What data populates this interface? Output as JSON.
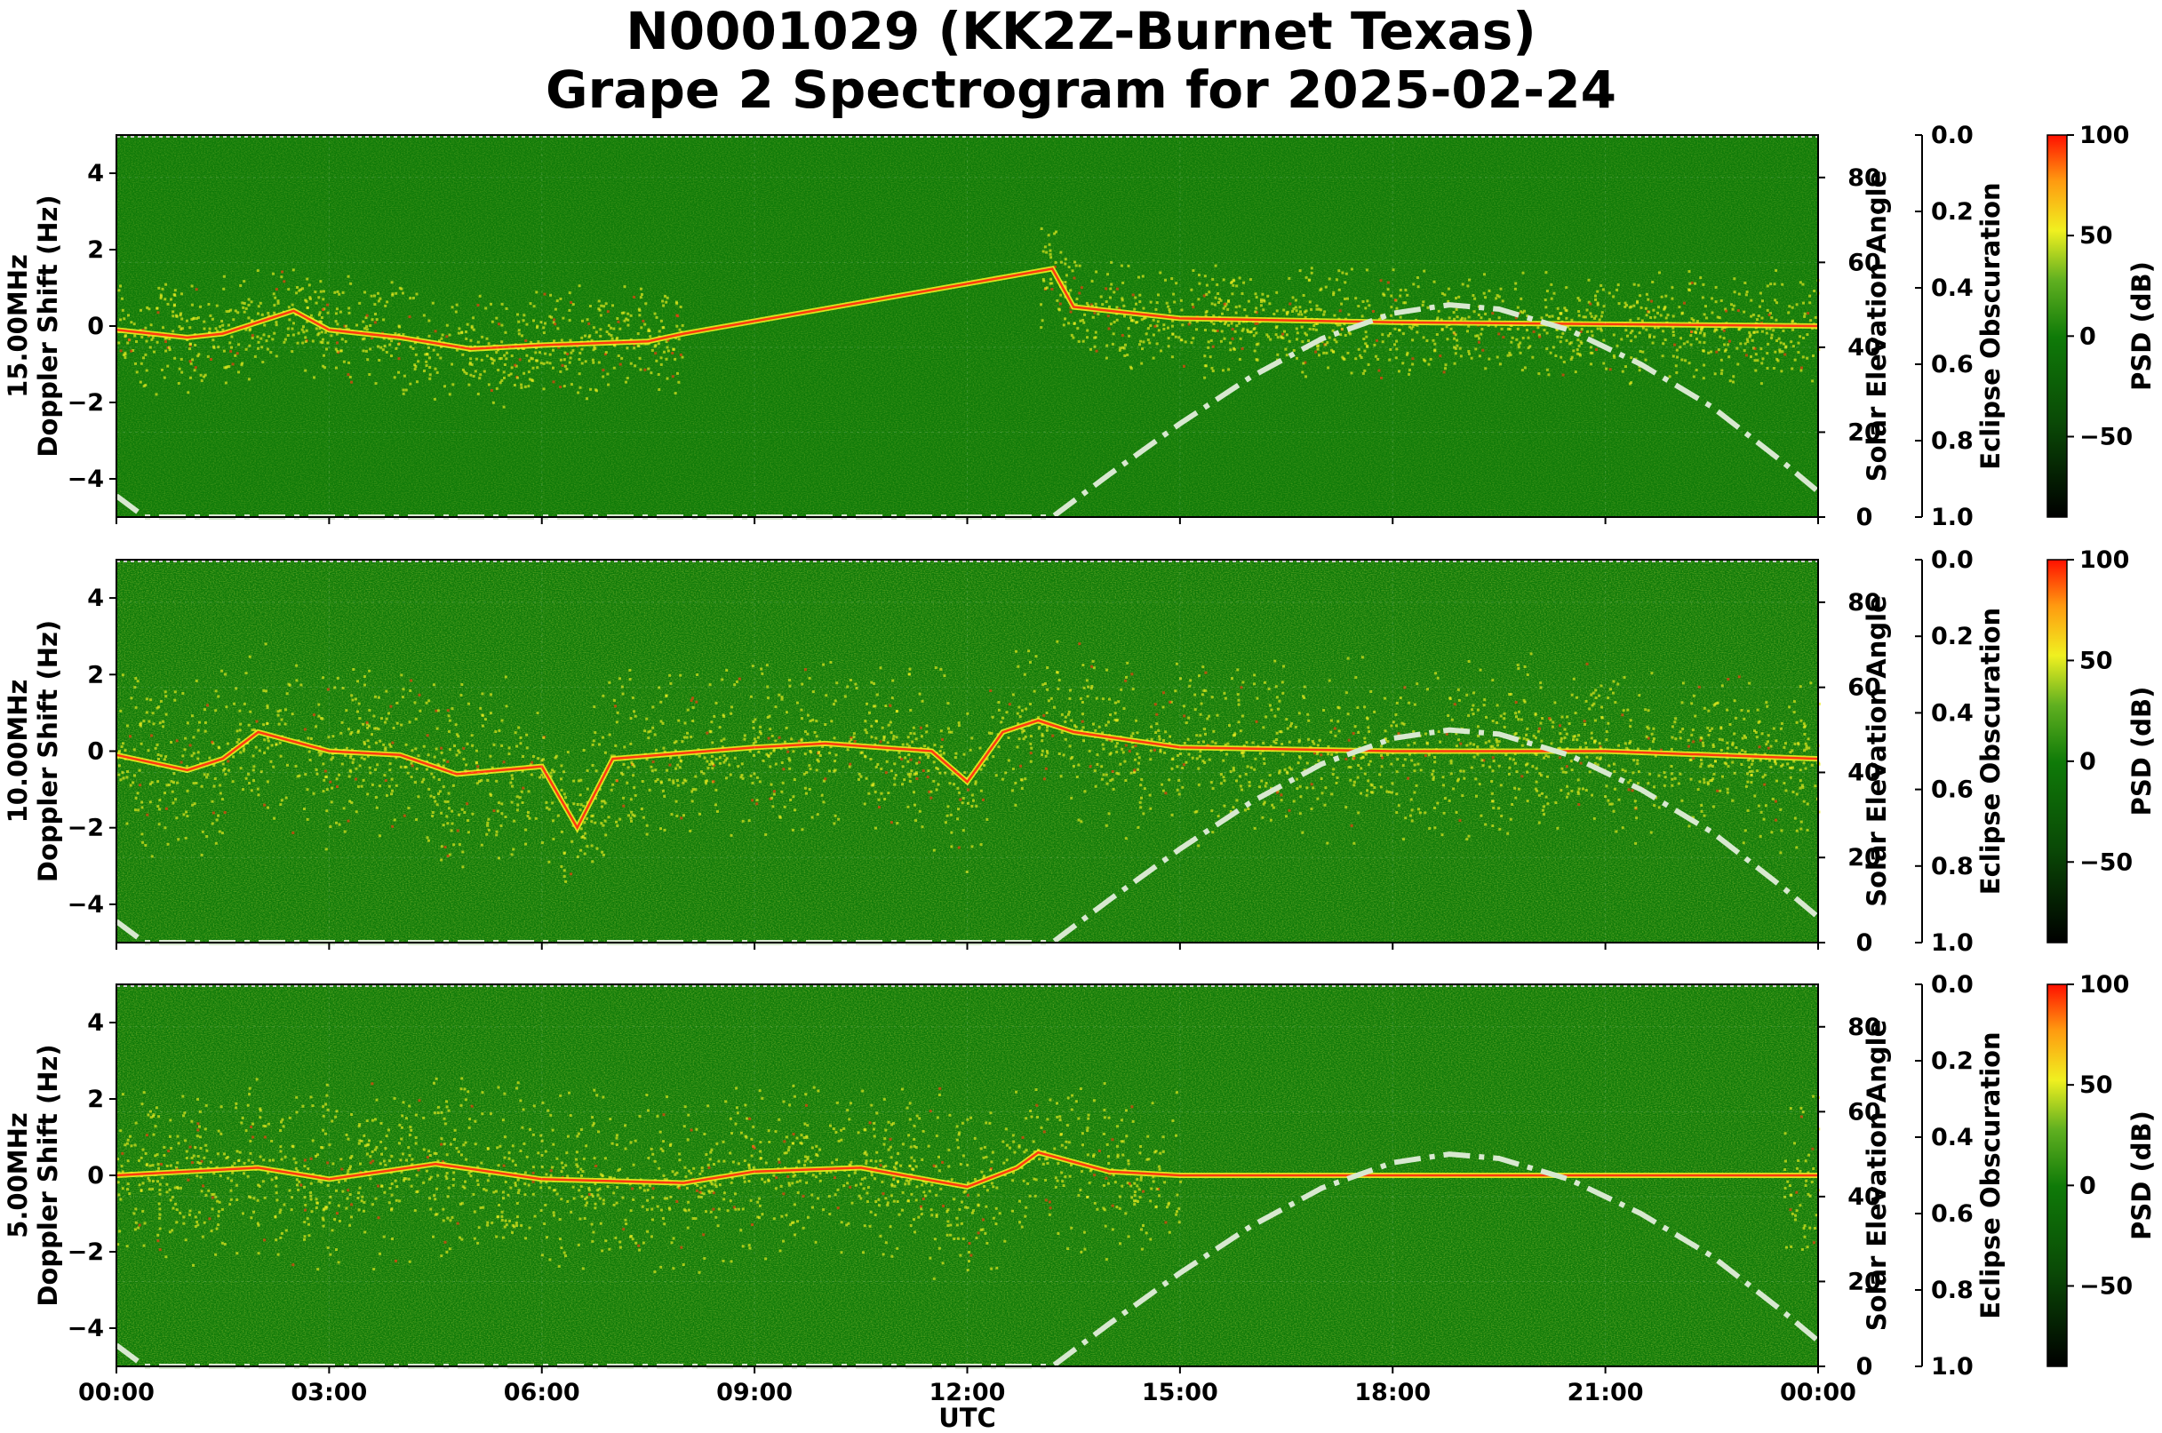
{
  "title": {
    "line1": "N0001029 (KK2Z-Burnet Texas)",
    "line2": "Grape 2 Spectrogram for 2025-02-24"
  },
  "colors": {
    "background": "#0f7a08",
    "signal": "#f0f020",
    "carrier": "#ff3a10",
    "solar_curve": "#d8e8d0"
  },
  "chart_data": [
    {
      "type": "heatmap",
      "frequency_label": "15.00MHz",
      "ylabel": "15.00MHz\nDoppler Shift (Hz)",
      "ylim": [
        -5,
        5
      ],
      "yticks": [
        4,
        2,
        0,
        -2,
        -4
      ],
      "right_axis": {
        "label": "Solar Elevation Angle",
        "ylim": [
          0,
          90
        ],
        "ticks": [
          80,
          60,
          40,
          20,
          0
        ]
      },
      "eclipse_axis": {
        "label": "Eclipse Obscuration",
        "ylim": [
          0.0,
          1.0
        ],
        "ticks": [
          "0.0",
          "0.2",
          "0.4",
          "0.6",
          "0.8",
          "1.0"
        ]
      },
      "colorbar": {
        "label": "PSD (dB)",
        "range": [
          -90,
          100
        ],
        "ticks": [
          100,
          50,
          0,
          -50
        ]
      },
      "carrier_trace": [
        [
          0.0,
          -0.1
        ],
        [
          1.0,
          -0.3
        ],
        [
          1.5,
          -0.2
        ],
        [
          2.0,
          0.1
        ],
        [
          2.5,
          0.4
        ],
        [
          3.0,
          -0.1
        ],
        [
          4.0,
          -0.3
        ],
        [
          5.0,
          -0.6
        ],
        [
          6.0,
          -0.5
        ],
        [
          7.5,
          -0.4
        ],
        [
          8.0,
          -0.2
        ],
        [
          13.2,
          1.5
        ],
        [
          13.5,
          0.5
        ],
        [
          15.0,
          0.2
        ],
        [
          18.0,
          0.1
        ],
        [
          21.0,
          0.05
        ],
        [
          24.0,
          0.0
        ]
      ]
    },
    {
      "type": "heatmap",
      "frequency_label": "10.00MHz",
      "ylabel": "10.00MHz\nDoppler Shift (Hz)",
      "ylim": [
        -5,
        5
      ],
      "yticks": [
        4,
        2,
        0,
        -2,
        -4
      ],
      "right_axis": {
        "label": "Solar Elevation Angle",
        "ylim": [
          0,
          90
        ],
        "ticks": [
          80,
          60,
          40,
          20,
          0
        ]
      },
      "eclipse_axis": {
        "label": "Eclipse Obscuration",
        "ylim": [
          0.0,
          1.0
        ],
        "ticks": [
          "0.0",
          "0.2",
          "0.4",
          "0.6",
          "0.8",
          "1.0"
        ]
      },
      "colorbar": {
        "label": "PSD (dB)",
        "range": [
          -90,
          100
        ],
        "ticks": [
          100,
          50,
          0,
          -50
        ]
      },
      "carrier_trace": [
        [
          0.0,
          -0.1
        ],
        [
          1.0,
          -0.5
        ],
        [
          1.5,
          -0.2
        ],
        [
          2.0,
          0.5
        ],
        [
          3.0,
          0.0
        ],
        [
          4.0,
          -0.1
        ],
        [
          4.8,
          -0.6
        ],
        [
          6.0,
          -0.4
        ],
        [
          6.5,
          -2.0
        ],
        [
          7.0,
          -0.2
        ],
        [
          9.0,
          0.1
        ],
        [
          10.0,
          0.2
        ],
        [
          11.5,
          0.0
        ],
        [
          12.0,
          -0.8
        ],
        [
          12.5,
          0.5
        ],
        [
          13.0,
          0.8
        ],
        [
          13.5,
          0.5
        ],
        [
          15.0,
          0.1
        ],
        [
          18.0,
          0.0
        ],
        [
          21.0,
          0.0
        ],
        [
          24.0,
          -0.2
        ]
      ]
    },
    {
      "type": "heatmap",
      "frequency_label": "5.00MHz",
      "ylabel": "5.00MHz\nDoppler Shift (Hz)",
      "ylim": [
        -5,
        5
      ],
      "yticks": [
        4,
        2,
        0,
        -2,
        -4
      ],
      "right_axis": {
        "label": "Solar Elevation Angle",
        "ylim": [
          0,
          90
        ],
        "ticks": [
          80,
          60,
          40,
          20,
          0
        ]
      },
      "eclipse_axis": {
        "label": "Eclipse Obscuration",
        "ylim": [
          0.0,
          1.0
        ],
        "ticks": [
          "0.0",
          "0.2",
          "0.4",
          "0.6",
          "0.8",
          "1.0"
        ]
      },
      "colorbar": {
        "label": "PSD (dB)",
        "range": [
          -90,
          100
        ],
        "ticks": [
          100,
          50,
          0,
          -50
        ]
      },
      "carrier_trace": [
        [
          0.0,
          0.0
        ],
        [
          2.0,
          0.2
        ],
        [
          3.0,
          -0.1
        ],
        [
          4.5,
          0.3
        ],
        [
          6.0,
          -0.1
        ],
        [
          8.0,
          -0.2
        ],
        [
          9.0,
          0.1
        ],
        [
          10.5,
          0.2
        ],
        [
          12.0,
          -0.3
        ],
        [
          12.7,
          0.2
        ],
        [
          13.0,
          0.6
        ],
        [
          14.0,
          0.1
        ],
        [
          15.0,
          0.0
        ],
        [
          24.0,
          0.0
        ]
      ]
    }
  ],
  "x_axis": {
    "label": "UTC",
    "range_hours": [
      0,
      24
    ],
    "tick_hours": [
      0,
      3,
      6,
      9,
      12,
      15,
      18,
      21,
      24
    ],
    "tick_labels": [
      "00:00",
      "03:00",
      "06:00",
      "09:00",
      "12:00",
      "15:00",
      "18:00",
      "21:00",
      "00:00"
    ]
  },
  "solar_elevation_curve": [
    [
      0,
      5
    ],
    [
      0.4,
      0
    ],
    [
      13.2,
      0
    ],
    [
      14,
      10
    ],
    [
      15,
      22
    ],
    [
      16,
      33
    ],
    [
      17,
      42
    ],
    [
      18,
      48
    ],
    [
      18.8,
      50
    ],
    [
      19.5,
      49
    ],
    [
      20.5,
      44
    ],
    [
      21.5,
      36
    ],
    [
      22.5,
      26
    ],
    [
      23.5,
      13
    ],
    [
      24,
      6
    ]
  ]
}
